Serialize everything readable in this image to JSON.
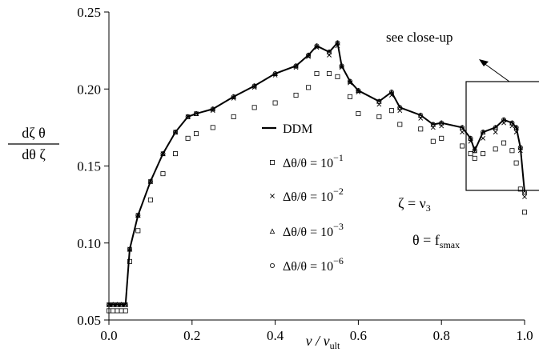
{
  "chart_data": {
    "type": "scatter",
    "xlim": [
      0.0,
      1.0
    ],
    "ylim": [
      0.05,
      0.25
    ],
    "x_ticks": [
      "0.0",
      "0.2",
      "0.4",
      "0.6",
      "0.8",
      "1.0"
    ],
    "y_ticks": [
      "0.05",
      "0.10",
      "0.15",
      "0.20",
      "0.25"
    ],
    "xlabel": {
      "main": "v / v",
      "sub": "ult"
    },
    "ylabel": {
      "num": "dζ θ",
      "den": "dθ ζ"
    },
    "grid": false,
    "legend_position": "center",
    "annotations": {
      "closeup": "see close-up",
      "zeta_eq": "ζ = ν",
      "zeta_sub": "3",
      "theta_eq": "θ = f",
      "theta_sub": "smax"
    },
    "series": [
      {
        "name": "DDM",
        "style": "line",
        "base": "DDM",
        "x": [
          0.0,
          0.01,
          0.02,
          0.03,
          0.04,
          0.05,
          0.07,
          0.1,
          0.13,
          0.16,
          0.19,
          0.21,
          0.25,
          0.3,
          0.35,
          0.4,
          0.45,
          0.48,
          0.5,
          0.53,
          0.55,
          0.56,
          0.58,
          0.6,
          0.65,
          0.68,
          0.7,
          0.75,
          0.78,
          0.8,
          0.85,
          0.87,
          0.88,
          0.9,
          0.93,
          0.95,
          0.97,
          0.98,
          0.99,
          1.0
        ],
        "y": [
          0.06,
          0.06,
          0.06,
          0.06,
          0.06,
          0.096,
          0.118,
          0.14,
          0.158,
          0.172,
          0.182,
          0.184,
          0.187,
          0.195,
          0.202,
          0.21,
          0.215,
          0.222,
          0.228,
          0.224,
          0.23,
          0.215,
          0.205,
          0.199,
          0.192,
          0.198,
          0.188,
          0.183,
          0.177,
          0.178,
          0.175,
          0.168,
          0.16,
          0.172,
          0.175,
          0.18,
          0.178,
          0.175,
          0.162,
          0.133
        ]
      },
      {
        "name": "Δθ/θ = 10",
        "sup": "−1",
        "marker": "square",
        "base": "Δθ/θ = 10",
        "x": [
          0.0,
          0.01,
          0.02,
          0.03,
          0.04,
          0.05,
          0.07,
          0.1,
          0.13,
          0.16,
          0.19,
          0.21,
          0.25,
          0.3,
          0.35,
          0.4,
          0.45,
          0.48,
          0.5,
          0.53,
          0.55,
          0.58,
          0.6,
          0.65,
          0.68,
          0.7,
          0.75,
          0.78,
          0.8,
          0.85,
          0.87,
          0.88,
          0.9,
          0.93,
          0.95,
          0.97,
          0.98,
          0.99,
          1.0
        ],
        "y": [
          0.056,
          0.056,
          0.056,
          0.056,
          0.056,
          0.088,
          0.108,
          0.128,
          0.145,
          0.158,
          0.168,
          0.171,
          0.175,
          0.182,
          0.188,
          0.191,
          0.196,
          0.201,
          0.21,
          0.21,
          0.208,
          0.195,
          0.184,
          0.182,
          0.186,
          0.177,
          0.174,
          0.166,
          0.168,
          0.163,
          0.158,
          0.155,
          0.158,
          0.161,
          0.165,
          0.16,
          0.152,
          0.135,
          0.12
        ]
      },
      {
        "name": "Δθ/θ = 10",
        "sup": "−2",
        "marker": "cross",
        "base": "Δθ/θ = 10",
        "x": [
          0.0,
          0.01,
          0.02,
          0.03,
          0.04,
          0.05,
          0.07,
          0.1,
          0.13,
          0.16,
          0.19,
          0.21,
          0.25,
          0.3,
          0.35,
          0.4,
          0.45,
          0.48,
          0.5,
          0.53,
          0.55,
          0.56,
          0.58,
          0.6,
          0.65,
          0.68,
          0.7,
          0.75,
          0.78,
          0.8,
          0.85,
          0.87,
          0.88,
          0.9,
          0.93,
          0.95,
          0.97,
          0.98,
          0.99,
          1.0
        ],
        "y": [
          0.06,
          0.06,
          0.06,
          0.06,
          0.06,
          0.096,
          0.118,
          0.14,
          0.158,
          0.172,
          0.182,
          0.184,
          0.186,
          0.194,
          0.201,
          0.209,
          0.214,
          0.221,
          0.227,
          0.222,
          0.228,
          0.214,
          0.204,
          0.198,
          0.19,
          0.196,
          0.186,
          0.181,
          0.175,
          0.176,
          0.172,
          0.166,
          0.162,
          0.168,
          0.172,
          0.178,
          0.176,
          0.172,
          0.16,
          0.13
        ]
      },
      {
        "name": "Δθ/θ = 10",
        "sup": "−3",
        "marker": "triangle",
        "base": "Δθ/θ = 10",
        "x": [
          0.0,
          0.01,
          0.02,
          0.03,
          0.04,
          0.05,
          0.07,
          0.1,
          0.13,
          0.16,
          0.19,
          0.21,
          0.25,
          0.3,
          0.35,
          0.4,
          0.45,
          0.48,
          0.5,
          0.53,
          0.55,
          0.56,
          0.58,
          0.6,
          0.65,
          0.68,
          0.7,
          0.75,
          0.78,
          0.8,
          0.85,
          0.87,
          0.88,
          0.9,
          0.93,
          0.95,
          0.97,
          0.98,
          0.99,
          1.0
        ],
        "y": [
          0.06,
          0.06,
          0.06,
          0.06,
          0.06,
          0.096,
          0.118,
          0.14,
          0.158,
          0.172,
          0.182,
          0.184,
          0.187,
          0.195,
          0.202,
          0.21,
          0.215,
          0.222,
          0.228,
          0.224,
          0.23,
          0.215,
          0.205,
          0.199,
          0.192,
          0.198,
          0.188,
          0.183,
          0.177,
          0.178,
          0.175,
          0.168,
          0.16,
          0.172,
          0.175,
          0.18,
          0.178,
          0.175,
          0.162,
          0.133
        ]
      },
      {
        "name": "Δθ/θ = 10",
        "sup": "−6",
        "marker": "circle",
        "base": "Δθ/θ = 10",
        "x": [
          0.0,
          0.01,
          0.02,
          0.03,
          0.04,
          0.05,
          0.07,
          0.1,
          0.13,
          0.16,
          0.19,
          0.21,
          0.25,
          0.3,
          0.35,
          0.4,
          0.45,
          0.48,
          0.5,
          0.53,
          0.55,
          0.56,
          0.58,
          0.6,
          0.65,
          0.68,
          0.7,
          0.75,
          0.78,
          0.8,
          0.85,
          0.87,
          0.88,
          0.9,
          0.93,
          0.95,
          0.97,
          0.98,
          0.99,
          1.0
        ],
        "y": [
          0.06,
          0.06,
          0.06,
          0.06,
          0.06,
          0.096,
          0.118,
          0.14,
          0.158,
          0.172,
          0.182,
          0.184,
          0.187,
          0.195,
          0.202,
          0.21,
          0.215,
          0.222,
          0.228,
          0.224,
          0.23,
          0.215,
          0.205,
          0.199,
          0.192,
          0.198,
          0.188,
          0.183,
          0.177,
          0.178,
          0.175,
          0.168,
          0.16,
          0.172,
          0.175,
          0.18,
          0.178,
          0.175,
          0.162,
          0.133
        ]
      }
    ]
  }
}
